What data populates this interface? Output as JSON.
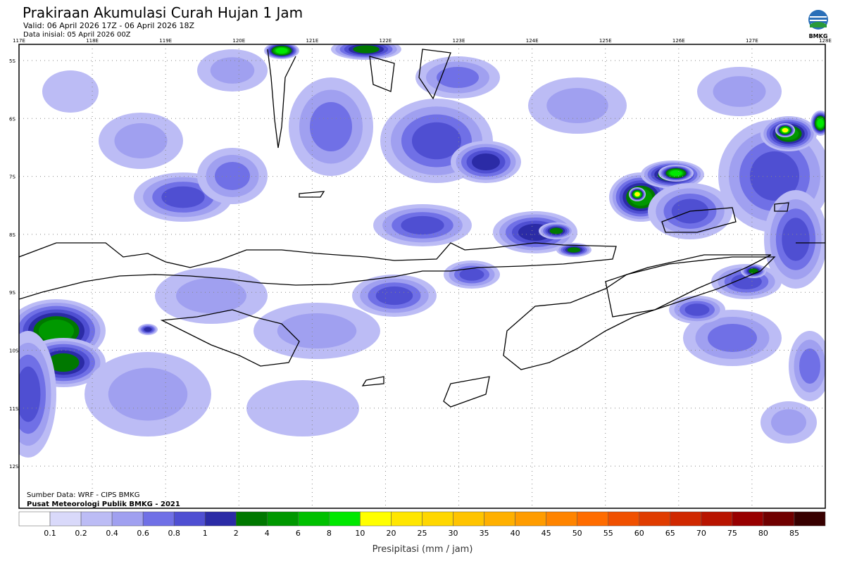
{
  "header": {
    "title": "Prakiraan Akumulasi Curah Hujan 1 Jam",
    "valid": "Valid: 06 April 2026 17Z - 06 April 2026 18Z",
    "init": "Data inisial: 05 April 2026 00Z",
    "logo": "BMKG"
  },
  "map": {
    "lon_labels": [
      "117E",
      "118E",
      "119E",
      "120E",
      "121E",
      "122E",
      "123E",
      "124E",
      "125E",
      "126E",
      "127E",
      "128E"
    ],
    "lat_labels": [
      "5S",
      "6S",
      "7S",
      "8S",
      "9S",
      "10S",
      "11S",
      "12S"
    ],
    "source": "Sumber Data: WRF - CIPS BMKG",
    "credit": "Pusat Meteorologi Publik BMKG - 2021"
  },
  "legend": {
    "title": "Presipitasi (mm / jam)",
    "colors": [
      "#ffffff",
      "#d9d9fa",
      "#bcbcf5",
      "#a0a0f0",
      "#7070e6",
      "#4f4fd2",
      "#2b2ba6",
      "#007800",
      "#009800",
      "#00c000",
      "#00e800",
      "#ffff00",
      "#ffe600",
      "#ffd700",
      "#ffc400",
      "#ffb000",
      "#ff9c00",
      "#ff8400",
      "#ff6c00",
      "#f05000",
      "#e03c00",
      "#d02800",
      "#b81400",
      "#980000",
      "#700000",
      "#380000"
    ],
    "labels": [
      0.1,
      0.2,
      0.4,
      0.6,
      0.8,
      1,
      2,
      4,
      6,
      8,
      10,
      20,
      25,
      30,
      35,
      40,
      45,
      50,
      55,
      60,
      65,
      70,
      75,
      80,
      85
    ]
  }
}
